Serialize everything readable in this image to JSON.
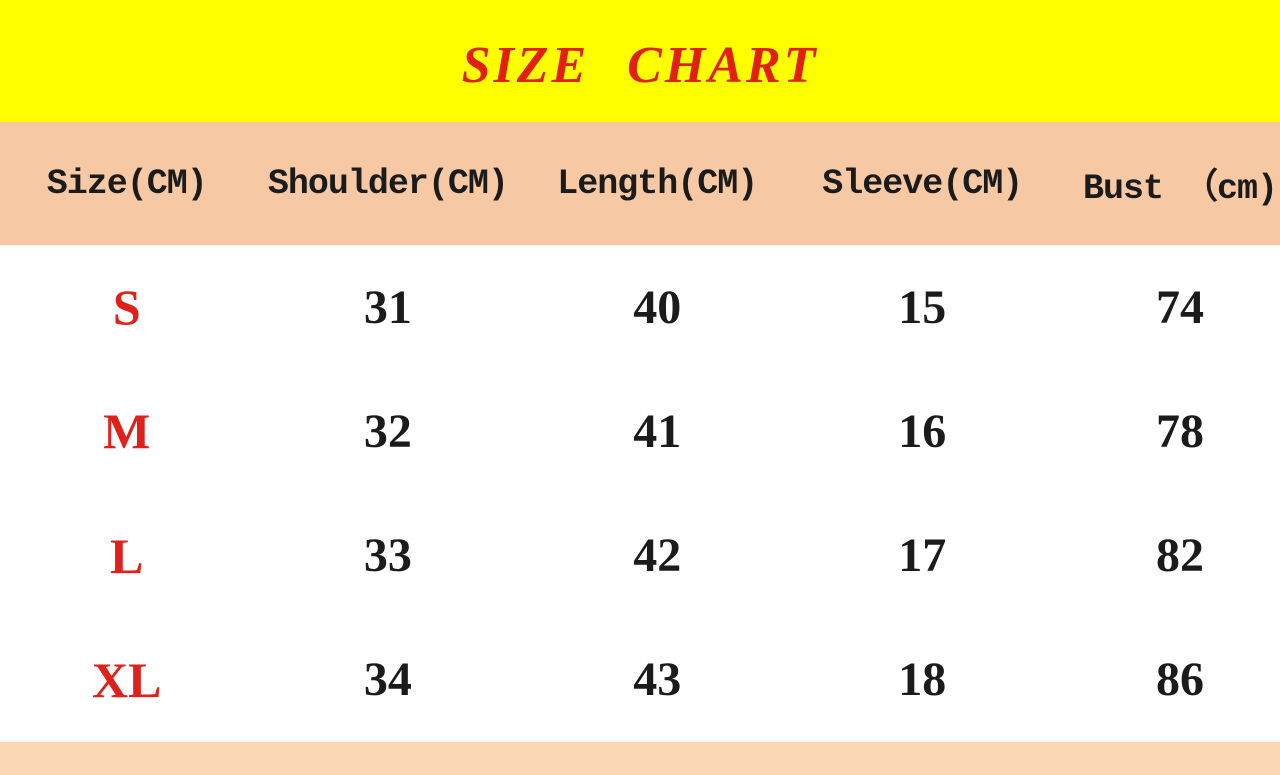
{
  "colors": {
    "banner_bg": "#ffff00",
    "title_red": "#e2200f",
    "header_bg": "#f6c9a4",
    "footer_bg": "#fbd7b3",
    "size_red": "#e0201a",
    "text_black": "#1b1b1b"
  },
  "chart_data": {
    "type": "table",
    "title": "SIZE CHART",
    "columns": [
      "Size(CM)",
      "Shoulder(CM)",
      "Length(CM)",
      "Sleeve(CM)",
      "Bust （cm)"
    ],
    "rows": [
      [
        "S",
        "31",
        "40",
        "15",
        "74"
      ],
      [
        "M",
        "32",
        "41",
        "16",
        "78"
      ],
      [
        "L",
        "33",
        "42",
        "17",
        "82"
      ],
      [
        "XL",
        "34",
        "43",
        "18",
        "86"
      ]
    ]
  }
}
